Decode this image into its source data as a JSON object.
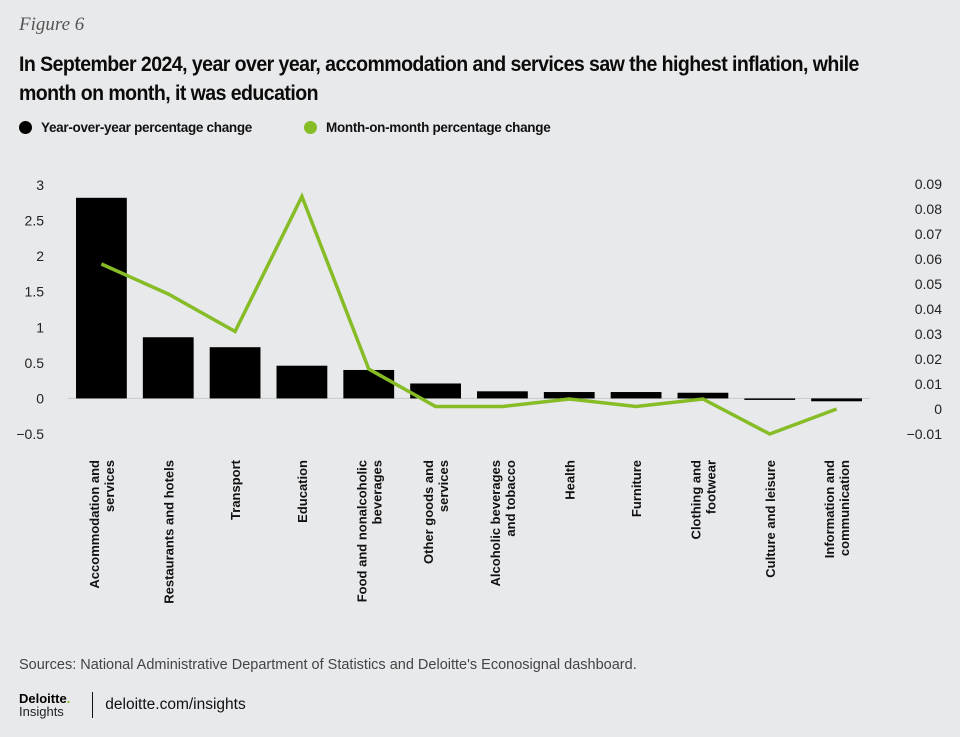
{
  "figure_label": "Figure 6",
  "title": "In September 2024, year over year, accommodation and services saw the highest inflation, while month on month, it was education",
  "legend": [
    {
      "label": "Year-over-year percentage change",
      "color": "#000000"
    },
    {
      "label": "Month-on-month percentage change",
      "color": "#86bc25"
    }
  ],
  "source": "Sources: National Administrative Department of Statistics and Deloitte's Econosignal dashboard.",
  "footer": {
    "brand": "Deloitte",
    "brand_dot": ".",
    "sub": "Insights",
    "url": "deloitte.com/insights"
  },
  "chart_data": {
    "type": "bar",
    "categories": [
      [
        "Accommodation and",
        "services"
      ],
      [
        "Restaurants and hotels"
      ],
      [
        "Transport"
      ],
      [
        "Education"
      ],
      [
        "Food and nonalcoholic",
        "beverages"
      ],
      [
        "Other goods and",
        "services"
      ],
      [
        "Alcoholic beverages",
        "and tobacco"
      ],
      [
        "Health"
      ],
      [
        "Furniture"
      ],
      [
        "Clothing and",
        "footwear"
      ],
      [
        "Culture and leisure"
      ],
      [
        "Information and",
        "communication"
      ]
    ],
    "series": [
      {
        "name": "Year-over-year percentage change",
        "type": "bar",
        "axis": "left",
        "color": "#000000",
        "values": [
          2.82,
          0.86,
          0.72,
          0.46,
          0.4,
          0.21,
          0.1,
          0.09,
          0.09,
          0.08,
          -0.01,
          -0.04
        ]
      },
      {
        "name": "Month-on-month percentage change",
        "type": "line",
        "axis": "right",
        "color": "#86bc25",
        "values": [
          0.058,
          0.046,
          0.031,
          0.085,
          0.016,
          0.001,
          0.001,
          0.004,
          0.001,
          0.004,
          -0.01,
          0.0
        ]
      }
    ],
    "left_axis": {
      "ylim": [
        -0.5,
        3
      ],
      "ticks": [
        "3",
        "2.5",
        "2",
        "1.5",
        "1",
        "0.5",
        "0",
        "−0.5"
      ],
      "tick_values": [
        3,
        2.5,
        2,
        1.5,
        1,
        0.5,
        0,
        -0.5
      ]
    },
    "right_axis": {
      "ylim": [
        -0.01,
        0.09
      ],
      "ticks": [
        "0.09",
        "0.08",
        "0.07",
        "0.06",
        "0.05",
        "0.04",
        "0.03",
        "0.02",
        "0.01",
        "0",
        "−0.01"
      ],
      "tick_values": [
        0.09,
        0.08,
        0.07,
        0.06,
        0.05,
        0.04,
        0.03,
        0.02,
        0.01,
        0,
        -0.01
      ]
    },
    "grid": false,
    "legend_position": "top-left",
    "xlabel": "",
    "ylabel": ""
  }
}
